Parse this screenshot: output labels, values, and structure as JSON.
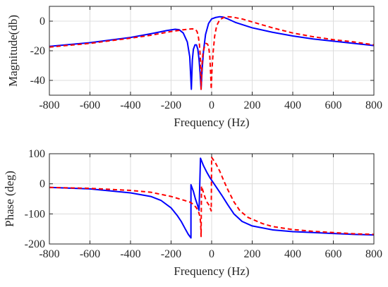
{
  "chart_data": [
    {
      "type": "line",
      "xlabel": "Frequency (Hz)",
      "ylabel": "Magnitude(db)",
      "xlim": [
        -800,
        800
      ],
      "ylim": [
        -50,
        10
      ],
      "xticks": [
        -800,
        -600,
        -400,
        -200,
        0,
        200,
        400,
        600,
        800
      ],
      "yticks": [
        -40,
        -20,
        0
      ],
      "xtick_labels": [
        "-800",
        "-600",
        "-400",
        "-200",
        "0",
        "200",
        "400",
        "600",
        "800"
      ],
      "ytick_labels": [
        "-40",
        "-20",
        "0"
      ],
      "grid": true,
      "series": [
        {
          "color": "#0000ff",
          "style": "solid",
          "points": [
            [
              -800,
              -17
            ],
            [
              -600,
              -14.5
            ],
            [
              -400,
              -11
            ],
            [
              -300,
              -8.5
            ],
            [
              -220,
              -6.3
            ],
            [
              -180,
              -5.5
            ],
            [
              -160,
              -5.8
            ],
            [
              -140,
              -8
            ],
            [
              -120,
              -14
            ],
            [
              -108,
              -24
            ],
            [
              -100,
              -46
            ],
            [
              -95,
              -26
            ],
            [
              -90,
              -19
            ],
            [
              -82,
              -16
            ],
            [
              -75,
              -16
            ],
            [
              -68,
              -19
            ],
            [
              -62,
              -26
            ],
            [
              -57,
              -35
            ],
            [
              -52,
              -46
            ],
            [
              -47,
              -33
            ],
            [
              -40,
              -20
            ],
            [
              -30,
              -9
            ],
            [
              -15,
              -1.5
            ],
            [
              0,
              1.5
            ],
            [
              20,
              2.5
            ],
            [
              40,
              3
            ],
            [
              55,
              2.8
            ],
            [
              80,
              1.5
            ],
            [
              120,
              -1
            ],
            [
              200,
              -4.5
            ],
            [
              300,
              -7.5
            ],
            [
              400,
              -10
            ],
            [
              500,
              -12
            ],
            [
              600,
              -13.5
            ],
            [
              700,
              -15
            ],
            [
              800,
              -16.5
            ]
          ]
        },
        {
          "color": "#ff0000",
          "style": "dashed",
          "points": [
            [
              -800,
              -17.5
            ],
            [
              -600,
              -15
            ],
            [
              -400,
              -11.5
            ],
            [
              -300,
              -9.5
            ],
            [
              -200,
              -7
            ],
            [
              -150,
              -6
            ],
            [
              -120,
              -5.5
            ],
            [
              -95,
              -5.2
            ],
            [
              -80,
              -5.5
            ],
            [
              -72,
              -7
            ],
            [
              -66,
              -10
            ],
            [
              -60,
              -16
            ],
            [
              -55,
              -26
            ],
            [
              -52,
              -46
            ],
            [
              -48,
              -30
            ],
            [
              -43,
              -22
            ],
            [
              -35,
              -17
            ],
            [
              -28,
              -15
            ],
            [
              -20,
              -15.5
            ],
            [
              -14,
              -18
            ],
            [
              -9,
              -24
            ],
            [
              -5,
              -35
            ],
            [
              -2,
              -46
            ],
            [
              2,
              -32
            ],
            [
              8,
              -20
            ],
            [
              15,
              -10
            ],
            [
              25,
              -3
            ],
            [
              40,
              1
            ],
            [
              60,
              2.5
            ],
            [
              80,
              3
            ],
            [
              100,
              2.8
            ],
            [
              150,
              1.5
            ],
            [
              200,
              -0.5
            ],
            [
              300,
              -4.5
            ],
            [
              400,
              -8
            ],
            [
              500,
              -10.5
            ],
            [
              600,
              -12.5
            ],
            [
              700,
              -14
            ],
            [
              800,
              -16
            ]
          ]
        }
      ]
    },
    {
      "type": "line",
      "xlabel": "Frequency (Hz)",
      "ylabel": "Phase (deg)",
      "xlim": [
        -800,
        800
      ],
      "ylim": [
        -200,
        100
      ],
      "xticks": [
        -800,
        -600,
        -400,
        -200,
        0,
        200,
        400,
        600,
        800
      ],
      "yticks": [
        -200,
        -100,
        0,
        100
      ],
      "xtick_labels": [
        "-800",
        "-600",
        "-400",
        "-200",
        "0",
        "200",
        "400",
        "600",
        "800"
      ],
      "ytick_labels": [
        "-200",
        "-100",
        "0",
        "100"
      ],
      "grid": true,
      "series": [
        {
          "color": "#0000ff",
          "style": "solid",
          "points": [
            [
              -800,
              -12
            ],
            [
              -600,
              -17
            ],
            [
              -400,
              -30
            ],
            [
              -300,
              -42
            ],
            [
              -250,
              -55
            ],
            [
              -200,
              -80
            ],
            [
              -170,
              -105
            ],
            [
              -150,
              -125
            ],
            [
              -130,
              -150
            ],
            [
              -115,
              -168
            ],
            [
              -102,
              -180
            ],
            [
              -102,
              -3
            ],
            [
              -90,
              -25
            ],
            [
              -80,
              -50
            ],
            [
              -70,
              -70
            ],
            [
              -62,
              -88
            ],
            [
              -62,
              -88
            ],
            [
              -55,
              85
            ],
            [
              -40,
              60
            ],
            [
              -25,
              40
            ],
            [
              -10,
              22
            ],
            [
              0,
              12
            ],
            [
              20,
              -8
            ],
            [
              50,
              -38
            ],
            [
              80,
              -70
            ],
            [
              110,
              -100
            ],
            [
              150,
              -125
            ],
            [
              200,
              -140
            ],
            [
              300,
              -153
            ],
            [
              400,
              -159
            ],
            [
              500,
              -162
            ],
            [
              600,
              -165
            ],
            [
              700,
              -168
            ],
            [
              800,
              -170
            ]
          ]
        },
        {
          "color": "#ff0000",
          "style": "dashed",
          "points": [
            [
              -800,
              -12
            ],
            [
              -600,
              -15
            ],
            [
              -400,
              -22
            ],
            [
              -300,
              -28
            ],
            [
              -250,
              -35
            ],
            [
              -200,
              -42
            ],
            [
              -150,
              -52
            ],
            [
              -110,
              -60
            ],
            [
              -90,
              -68
            ],
            [
              -75,
              -80
            ],
            [
              -65,
              -92
            ],
            [
              -58,
              -108
            ],
            [
              -54,
              -130
            ],
            [
              -52,
              -175
            ],
            [
              -50,
              -8
            ],
            [
              -45,
              -18
            ],
            [
              -38,
              -35
            ],
            [
              -30,
              -50
            ],
            [
              -22,
              -62
            ],
            [
              -12,
              -72
            ],
            [
              -5,
              -85
            ],
            [
              -2,
              -90
            ],
            [
              0,
              88
            ],
            [
              20,
              68
            ],
            [
              40,
              42
            ],
            [
              60,
              10
            ],
            [
              80,
              -20
            ],
            [
              110,
              -60
            ],
            [
              140,
              -90
            ],
            [
              180,
              -112
            ],
            [
              250,
              -132
            ],
            [
              300,
              -142
            ],
            [
              400,
              -152
            ],
            [
              500,
              -158
            ],
            [
              600,
              -162
            ],
            [
              700,
              -166
            ],
            [
              800,
              -168
            ]
          ]
        }
      ]
    }
  ]
}
